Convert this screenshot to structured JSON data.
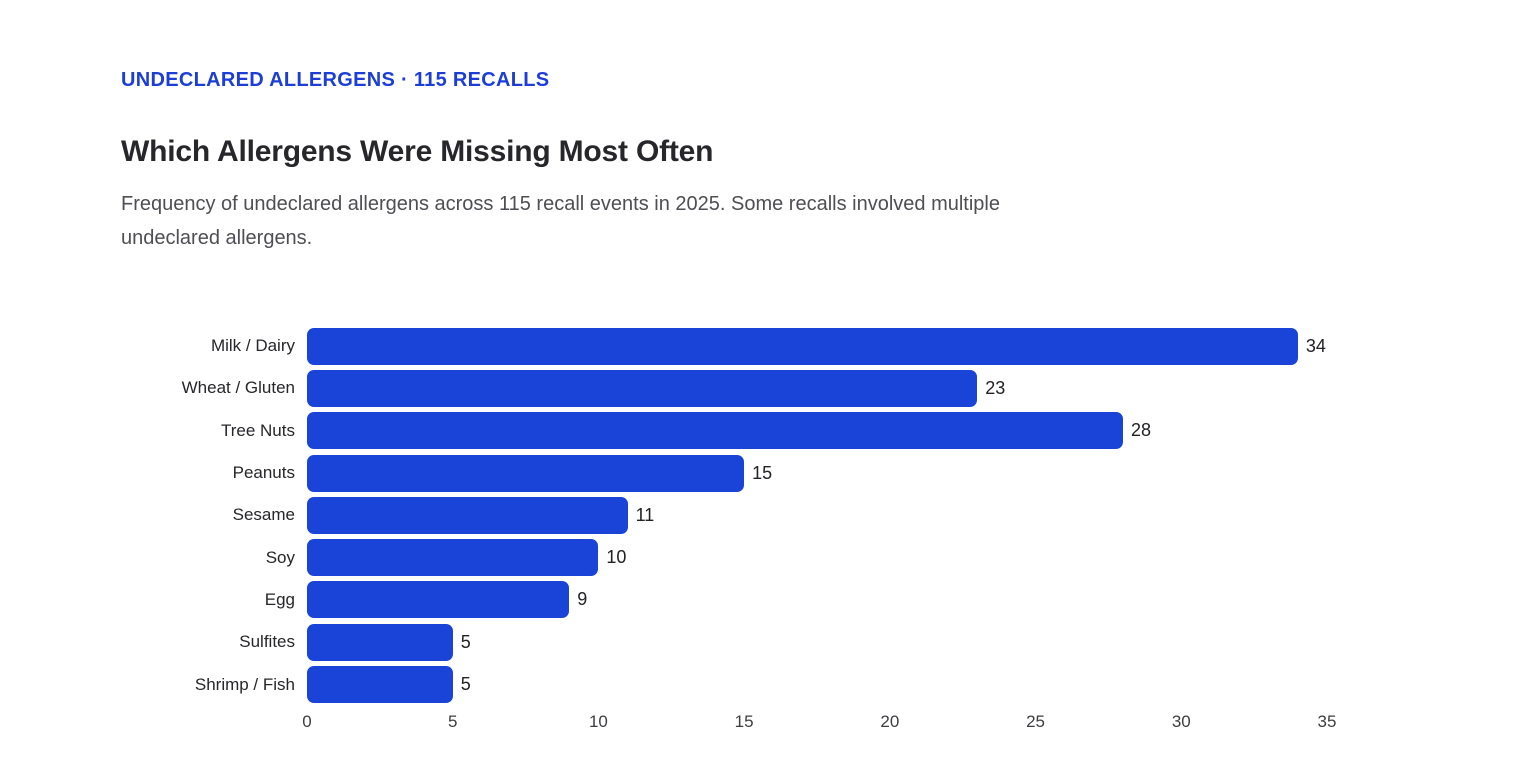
{
  "page": {
    "eyebrow": "UNDECLARED ALLERGENS · 115 RECALLS",
    "title": "Which Allergens Were Missing Most Often",
    "subtitle": "Frequency of undeclared allergens across 115 recall events in 2025. Some recalls involved multiple undeclared allergens."
  },
  "colors": {
    "eyebrow_text": "#1c3ed6",
    "bar": "#1a43d8",
    "title_text": "#26262b",
    "subtitle_text": "#4e4e54",
    "background": "#ffffff"
  },
  "chart_data": {
    "type": "bar",
    "orientation": "horizontal",
    "title": "Which Allergens Were Missing Most Often",
    "subtitle": "Frequency of undeclared allergens across 115 recall events in 2025. Some recalls involved multiple undeclared allergens.",
    "categories": [
      "Milk / Dairy",
      "Wheat / Gluten",
      "Tree Nuts",
      "Peanuts",
      "Sesame",
      "Soy",
      "Egg",
      "Sulfites",
      "Shrimp / Fish"
    ],
    "values": [
      34,
      23,
      28,
      15,
      11,
      10,
      9,
      5,
      5
    ],
    "xlabel": "",
    "ylabel": "",
    "xlim": [
      0,
      35
    ],
    "xticks": [
      0,
      5,
      10,
      15,
      20,
      25,
      30,
      35
    ],
    "grid": false,
    "legend": false,
    "value_labels": true,
    "bar_color": "#1a43d8"
  }
}
